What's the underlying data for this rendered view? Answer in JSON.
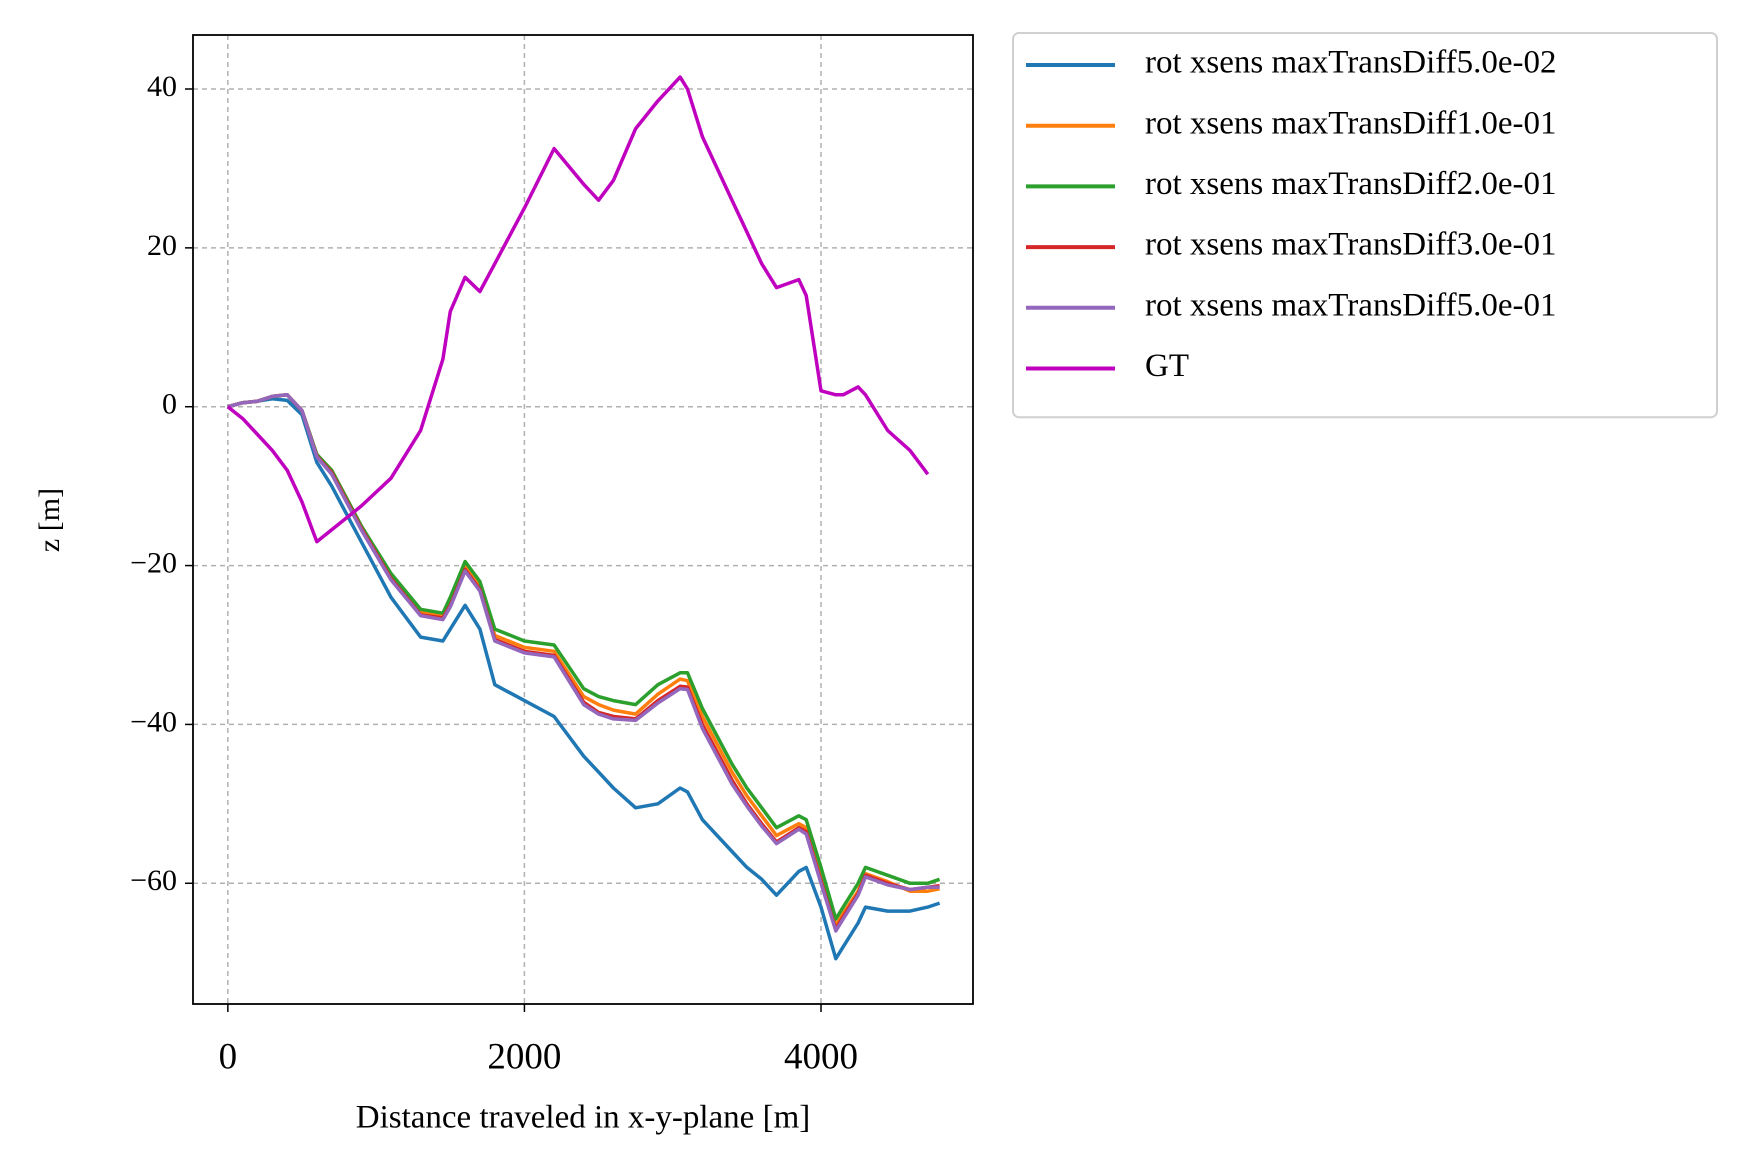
{
  "chart_data": {
    "type": "line",
    "xlabel": "Distance traveled in x-y-plane [m]",
    "ylabel": "z [m]",
    "x": [
      0,
      100,
      200,
      300,
      400,
      500,
      600,
      700,
      900,
      1100,
      1300,
      1450,
      1500,
      1600,
      1700,
      1800,
      2000,
      2200,
      2400,
      2500,
      2600,
      2750,
      2900,
      3050,
      3100,
      3200,
      3400,
      3500,
      3600,
      3700,
      3850,
      3900,
      4000,
      4100,
      4150,
      4250,
      4300,
      4450,
      4600,
      4720,
      4800
    ],
    "series": [
      {
        "name": "rot xsens maxTransDiff5.0e-02",
        "color": "#1f77b4",
        "values": [
          0,
          0.5,
          0.7,
          1,
          0.8,
          -1,
          -7,
          -10,
          -17,
          -24,
          -29,
          -29.5,
          -28,
          -25,
          -28,
          -35,
          -37,
          -39,
          -44,
          -46,
          -48,
          -50.5,
          -50,
          -48,
          -48.5,
          -52,
          -56,
          -58,
          -59.5,
          -61.5,
          -58.5,
          -58,
          -63,
          -69.5,
          -68,
          -65,
          -63,
          -63.5,
          -63.5,
          -63,
          -62.5
        ]
      },
      {
        "name": "rot xsens maxTransDiff1.0e-01",
        "color": "#ff7f0e",
        "values": [
          0,
          0.5,
          0.7,
          1.3,
          1.5,
          -0.5,
          -6,
          -8,
          -15,
          -21.3,
          -25.8,
          -26.3,
          -24.5,
          -20,
          -22.5,
          -28.8,
          -30.3,
          -30.8,
          -36.5,
          -37.5,
          -38.2,
          -38.7,
          -36.2,
          -34.3,
          -34.5,
          -39,
          -46,
          -49,
          -51.5,
          -54,
          -52.5,
          -53,
          -59,
          -65.3,
          -63.8,
          -61,
          -58.8,
          -59.8,
          -61,
          -61,
          -60.7
        ]
      },
      {
        "name": "rot xsens maxTransDiff2.0e-01",
        "color": "#2ca02c",
        "values": [
          0,
          0.5,
          0.7,
          1.3,
          1.5,
          -0.5,
          -6,
          -8,
          -15,
          -21,
          -25.5,
          -26,
          -24,
          -19.5,
          -22,
          -28,
          -29.5,
          -30,
          -35.5,
          -36.5,
          -37,
          -37.5,
          -35,
          -33.5,
          -33.5,
          -38,
          -45,
          -48,
          -50.5,
          -53,
          -51.5,
          -52,
          -58,
          -64.5,
          -63,
          -60,
          -58,
          -59,
          -60,
          -60,
          -59.5
        ]
      },
      {
        "name": "rot xsens maxTransDiff3.0e-01",
        "color": "#d62728",
        "values": [
          0,
          0.5,
          0.7,
          1.3,
          1.5,
          -0.5,
          -6.2,
          -8.3,
          -15.3,
          -21.6,
          -26.2,
          -26.6,
          -25,
          -20.5,
          -23,
          -29.3,
          -30.8,
          -31.3,
          -37.2,
          -38.5,
          -39,
          -39.3,
          -37,
          -35.2,
          -35.3,
          -40,
          -47,
          -50,
          -52.5,
          -54.8,
          -53,
          -53.5,
          -59.7,
          -65.8,
          -64.2,
          -61.3,
          -59,
          -60,
          -60.8,
          -60.5,
          -60.3
        ]
      },
      {
        "name": "rot xsens maxTransDiff5.0e-01",
        "color": "#9467bd",
        "values": [
          0,
          0.5,
          0.7,
          1.3,
          1.5,
          -0.5,
          -6.3,
          -8.5,
          -15.5,
          -21.8,
          -26.3,
          -26.8,
          -25.2,
          -20.7,
          -23.2,
          -29.5,
          -31,
          -31.5,
          -37.5,
          -38.7,
          -39.3,
          -39.5,
          -37.3,
          -35.5,
          -35.6,
          -40.5,
          -47.5,
          -50.3,
          -52.8,
          -55,
          -53.2,
          -53.8,
          -60,
          -66,
          -64.5,
          -61.5,
          -59.2,
          -60.2,
          -60.8,
          -60.5,
          -60.5
        ]
      },
      {
        "name": "GT",
        "color": "#bf00bf",
        "values": [
          0,
          -1.5,
          -3.5,
          -5.5,
          -8,
          -12,
          -17,
          -15.5,
          -12.5,
          -9,
          -3,
          6,
          12,
          16.3,
          14.5,
          18,
          25,
          32.5,
          28,
          26,
          28.5,
          35,
          38.5,
          41.5,
          40,
          34,
          26,
          22,
          18,
          15,
          16,
          14,
          2,
          1.5,
          1.5,
          2.5,
          1.5,
          -3,
          -5.5,
          -8.5,
          null
        ]
      }
    ],
    "xlim": [
      -235,
      5025
    ],
    "ylim": [
      -75.2,
      46.8
    ],
    "xticks": [
      0,
      2000,
      4000
    ],
    "yticks": [
      {
        "value": -60,
        "label": "−60"
      },
      {
        "value": -40,
        "label": "−40"
      },
      {
        "value": -20,
        "label": "−20"
      },
      0,
      20,
      40
    ],
    "grid": true,
    "legend": "outside right"
  }
}
